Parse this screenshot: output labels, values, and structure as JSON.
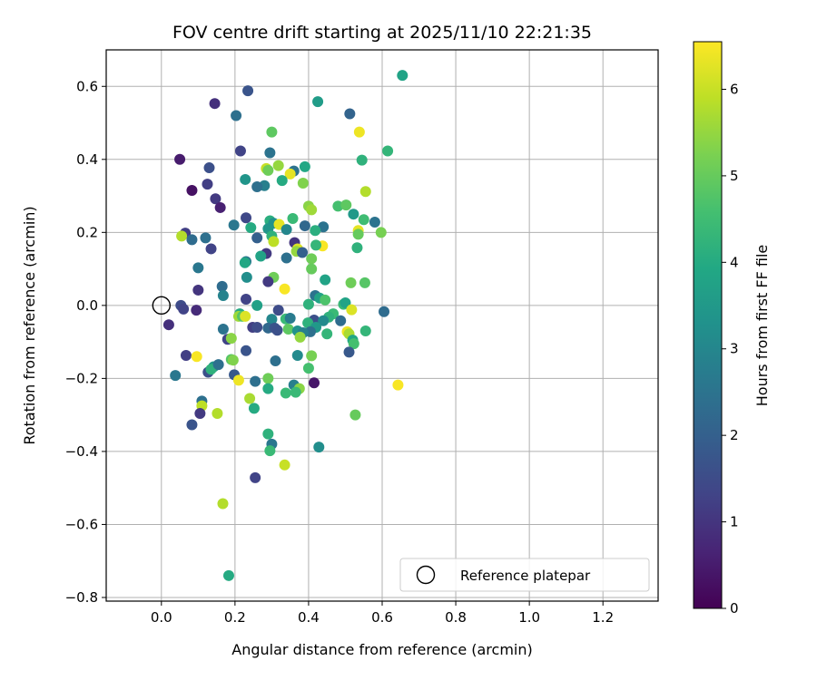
{
  "chart_data": {
    "type": "scatter",
    "title": "FOV centre drift starting at 2025/11/10 22:21:35",
    "xlabel": "Angular distance from reference (arcmin)",
    "ylabel": "Rotation from reference (arcmin)",
    "xlim": [
      -0.15,
      1.35
    ],
    "ylim": [
      -0.81,
      0.7
    ],
    "xticks": [
      0.0,
      0.2,
      0.4,
      0.6,
      0.8,
      1.0,
      1.2
    ],
    "xtick_labels": [
      "0.0",
      "0.2",
      "0.4",
      "0.6",
      "0.8",
      "1.0",
      "1.2"
    ],
    "yticks": [
      0.6,
      0.4,
      0.2,
      0.0,
      -0.2,
      -0.4,
      -0.6,
      -0.8
    ],
    "ytick_labels": [
      "0.6",
      "0.4",
      "0.2",
      "0.0",
      "−0.2",
      "−0.4",
      "−0.6",
      "−0.8"
    ],
    "grid": true,
    "legend": {
      "placement": "lower-right",
      "entries": [
        "Reference platepar"
      ]
    },
    "reference_point": {
      "x": 0.0,
      "y": 0.0
    },
    "colorbar": {
      "label": "Hours from first FF file",
      "range": [
        0,
        6.55
      ],
      "ticks": [
        0,
        1,
        2,
        3,
        4,
        5,
        6
      ],
      "tick_labels": [
        "0",
        "1",
        "2",
        "3",
        "4",
        "5",
        "6"
      ],
      "colormap": "viridis"
    },
    "points": [
      {
        "x": 0.655,
        "y": 0.63,
        "h": 3.8
      },
      {
        "x": 0.425,
        "y": 0.558,
        "h": 3.6
      },
      {
        "x": 0.235,
        "y": 0.588,
        "h": 1.7
      },
      {
        "x": 0.145,
        "y": 0.553,
        "h": 0.9
      },
      {
        "x": 0.203,
        "y": 0.52,
        "h": 2.4
      },
      {
        "x": 0.512,
        "y": 0.525,
        "h": 2.1
      },
      {
        "x": 0.538,
        "y": 0.475,
        "h": 6.4
      },
      {
        "x": 0.3,
        "y": 0.475,
        "h": 4.9
      },
      {
        "x": 0.215,
        "y": 0.423,
        "h": 1.3
      },
      {
        "x": 0.295,
        "y": 0.418,
        "h": 2.5
      },
      {
        "x": 0.615,
        "y": 0.423,
        "h": 4.3
      },
      {
        "x": 0.05,
        "y": 0.4,
        "h": 0.5
      },
      {
        "x": 0.545,
        "y": 0.398,
        "h": 4.2
      },
      {
        "x": 0.13,
        "y": 0.377,
        "h": 1.6
      },
      {
        "x": 0.285,
        "y": 0.375,
        "h": 6.0
      },
      {
        "x": 0.318,
        "y": 0.383,
        "h": 5.5
      },
      {
        "x": 0.39,
        "y": 0.38,
        "h": 3.9
      },
      {
        "x": 0.29,
        "y": 0.37,
        "h": 5.1
      },
      {
        "x": 0.36,
        "y": 0.368,
        "h": 2.5
      },
      {
        "x": 0.35,
        "y": 0.36,
        "h": 6.3
      },
      {
        "x": 0.228,
        "y": 0.345,
        "h": 3.4
      },
      {
        "x": 0.328,
        "y": 0.342,
        "h": 4.0
      },
      {
        "x": 0.385,
        "y": 0.335,
        "h": 5.3
      },
      {
        "x": 0.125,
        "y": 0.332,
        "h": 1.2
      },
      {
        "x": 0.28,
        "y": 0.328,
        "h": 2.8
      },
      {
        "x": 0.26,
        "y": 0.325,
        "h": 2.4
      },
      {
        "x": 0.083,
        "y": 0.315,
        "h": 0.3
      },
      {
        "x": 0.555,
        "y": 0.312,
        "h": 5.8
      },
      {
        "x": 0.147,
        "y": 0.292,
        "h": 1.1
      },
      {
        "x": 0.4,
        "y": 0.272,
        "h": 5.4
      },
      {
        "x": 0.48,
        "y": 0.272,
        "h": 4.6
      },
      {
        "x": 0.502,
        "y": 0.275,
        "h": 4.9
      },
      {
        "x": 0.16,
        "y": 0.268,
        "h": 0.6
      },
      {
        "x": 0.408,
        "y": 0.262,
        "h": 5.6
      },
      {
        "x": 0.522,
        "y": 0.25,
        "h": 3.5
      },
      {
        "x": 0.23,
        "y": 0.24,
        "h": 1.4
      },
      {
        "x": 0.357,
        "y": 0.238,
        "h": 4.4
      },
      {
        "x": 0.295,
        "y": 0.232,
        "h": 4.1
      },
      {
        "x": 0.58,
        "y": 0.228,
        "h": 2.5
      },
      {
        "x": 0.55,
        "y": 0.235,
        "h": 4.5
      },
      {
        "x": 0.197,
        "y": 0.22,
        "h": 2.6
      },
      {
        "x": 0.305,
        "y": 0.225,
        "h": 3.3
      },
      {
        "x": 0.32,
        "y": 0.222,
        "h": 6.3
      },
      {
        "x": 0.39,
        "y": 0.218,
        "h": 2.2
      },
      {
        "x": 0.44,
        "y": 0.215,
        "h": 2.5
      },
      {
        "x": 0.243,
        "y": 0.213,
        "h": 4.0
      },
      {
        "x": 0.29,
        "y": 0.21,
        "h": 3.4
      },
      {
        "x": 0.34,
        "y": 0.208,
        "h": 3.0
      },
      {
        "x": 0.418,
        "y": 0.205,
        "h": 4.1
      },
      {
        "x": 0.597,
        "y": 0.2,
        "h": 5.2
      },
      {
        "x": 0.065,
        "y": 0.198,
        "h": 1.2
      },
      {
        "x": 0.055,
        "y": 0.19,
        "h": 5.8
      },
      {
        "x": 0.3,
        "y": 0.19,
        "h": 4.2
      },
      {
        "x": 0.535,
        "y": 0.205,
        "h": 6.3
      },
      {
        "x": 0.535,
        "y": 0.195,
        "h": 5.0
      },
      {
        "x": 0.12,
        "y": 0.185,
        "h": 2.4
      },
      {
        "x": 0.083,
        "y": 0.18,
        "h": 2.3
      },
      {
        "x": 0.26,
        "y": 0.185,
        "h": 2.0
      },
      {
        "x": 0.305,
        "y": 0.175,
        "h": 5.9
      },
      {
        "x": 0.362,
        "y": 0.172,
        "h": 1.0
      },
      {
        "x": 0.438,
        "y": 0.163,
        "h": 6.5
      },
      {
        "x": 0.42,
        "y": 0.165,
        "h": 4.3
      },
      {
        "x": 0.532,
        "y": 0.158,
        "h": 4.2
      },
      {
        "x": 0.135,
        "y": 0.155,
        "h": 1.3
      },
      {
        "x": 0.37,
        "y": 0.155,
        "h": 6.2
      },
      {
        "x": 0.367,
        "y": 0.148,
        "h": 5.5
      },
      {
        "x": 0.285,
        "y": 0.142,
        "h": 1.1
      },
      {
        "x": 0.383,
        "y": 0.145,
        "h": 2.0
      },
      {
        "x": 0.27,
        "y": 0.135,
        "h": 3.8
      },
      {
        "x": 0.34,
        "y": 0.13,
        "h": 2.4
      },
      {
        "x": 0.408,
        "y": 0.128,
        "h": 5.1
      },
      {
        "x": 0.23,
        "y": 0.12,
        "h": 2.6
      },
      {
        "x": 0.227,
        "y": 0.117,
        "h": 3.9
      },
      {
        "x": 0.1,
        "y": 0.103,
        "h": 2.6
      },
      {
        "x": 0.408,
        "y": 0.1,
        "h": 5.0
      },
      {
        "x": 0.232,
        "y": 0.077,
        "h": 3.2
      },
      {
        "x": 0.305,
        "y": 0.077,
        "h": 5.1
      },
      {
        "x": 0.29,
        "y": 0.065,
        "h": 1.1
      },
      {
        "x": 0.445,
        "y": 0.07,
        "h": 3.8
      },
      {
        "x": 0.515,
        "y": 0.062,
        "h": 5.1
      },
      {
        "x": 0.553,
        "y": 0.062,
        "h": 4.8
      },
      {
        "x": 0.335,
        "y": 0.045,
        "h": 6.5
      },
      {
        "x": 0.165,
        "y": 0.052,
        "h": 2.3
      },
      {
        "x": 0.1,
        "y": 0.042,
        "h": 1.0
      },
      {
        "x": 0.168,
        "y": 0.027,
        "h": 2.9
      },
      {
        "x": 0.418,
        "y": 0.027,
        "h": 2.5
      },
      {
        "x": 0.43,
        "y": 0.02,
        "h": 3.8
      },
      {
        "x": 0.23,
        "y": 0.017,
        "h": 1.3
      },
      {
        "x": 0.445,
        "y": 0.015,
        "h": 4.7
      },
      {
        "x": 0.4,
        "y": 0.003,
        "h": 4.2
      },
      {
        "x": 0.495,
        "y": 0.003,
        "h": 4.4
      },
      {
        "x": 0.5,
        "y": 0.007,
        "h": 3.8
      },
      {
        "x": 0.26,
        "y": 0.0,
        "h": 3.7
      },
      {
        "x": 0.053,
        "y": 0.0,
        "h": 1.5
      },
      {
        "x": 0.06,
        "y": -0.01,
        "h": 1.3
      },
      {
        "x": 0.095,
        "y": -0.013,
        "h": 0.8
      },
      {
        "x": 0.517,
        "y": -0.012,
        "h": 6.2
      },
      {
        "x": 0.605,
        "y": -0.017,
        "h": 2.3
      },
      {
        "x": 0.318,
        "y": -0.013,
        "h": 1.5
      },
      {
        "x": 0.213,
        "y": -0.023,
        "h": 4.0
      },
      {
        "x": 0.467,
        "y": -0.023,
        "h": 4.4
      },
      {
        "x": 0.21,
        "y": -0.03,
        "h": 5.6
      },
      {
        "x": 0.22,
        "y": -0.03,
        "h": 4.8
      },
      {
        "x": 0.228,
        "y": -0.03,
        "h": 6.2
      },
      {
        "x": 0.455,
        "y": -0.032,
        "h": 4.2
      },
      {
        "x": 0.3,
        "y": -0.038,
        "h": 3.0
      },
      {
        "x": 0.338,
        "y": -0.037,
        "h": 4.4
      },
      {
        "x": 0.35,
        "y": -0.035,
        "h": 2.7
      },
      {
        "x": 0.415,
        "y": -0.04,
        "h": 1.6
      },
      {
        "x": 0.44,
        "y": -0.042,
        "h": 3.1
      },
      {
        "x": 0.487,
        "y": -0.042,
        "h": 2.3
      },
      {
        "x": 0.02,
        "y": -0.053,
        "h": 0.9
      },
      {
        "x": 0.398,
        "y": -0.048,
        "h": 4.2
      },
      {
        "x": 0.248,
        "y": -0.06,
        "h": 1.2
      },
      {
        "x": 0.26,
        "y": -0.06,
        "h": 1.5
      },
      {
        "x": 0.29,
        "y": -0.062,
        "h": 2.2
      },
      {
        "x": 0.308,
        "y": -0.062,
        "h": 1.7
      },
      {
        "x": 0.315,
        "y": -0.068,
        "h": 1.6
      },
      {
        "x": 0.42,
        "y": -0.06,
        "h": 3.5
      },
      {
        "x": 0.345,
        "y": -0.065,
        "h": 4.9
      },
      {
        "x": 0.168,
        "y": -0.065,
        "h": 2.5
      },
      {
        "x": 0.37,
        "y": -0.07,
        "h": 3.3
      },
      {
        "x": 0.405,
        "y": -0.072,
        "h": 2.4
      },
      {
        "x": 0.385,
        "y": -0.075,
        "h": 2.8
      },
      {
        "x": 0.555,
        "y": -0.07,
        "h": 4.3
      },
      {
        "x": 0.505,
        "y": -0.072,
        "h": 6.4
      },
      {
        "x": 0.45,
        "y": -0.078,
        "h": 4.3
      },
      {
        "x": 0.51,
        "y": -0.078,
        "h": 5.7
      },
      {
        "x": 0.377,
        "y": -0.087,
        "h": 5.5
      },
      {
        "x": 0.18,
        "y": -0.093,
        "h": 1.3
      },
      {
        "x": 0.19,
        "y": -0.09,
        "h": 5.4
      },
      {
        "x": 0.52,
        "y": -0.095,
        "h": 3.9
      },
      {
        "x": 0.523,
        "y": -0.105,
        "h": 4.6
      },
      {
        "x": 0.23,
        "y": -0.124,
        "h": 1.7
      },
      {
        "x": 0.51,
        "y": -0.128,
        "h": 1.8
      },
      {
        "x": 0.067,
        "y": -0.137,
        "h": 1.2
      },
      {
        "x": 0.096,
        "y": -0.14,
        "h": 6.5
      },
      {
        "x": 0.37,
        "y": -0.137,
        "h": 3.1
      },
      {
        "x": 0.408,
        "y": -0.138,
        "h": 5.2
      },
      {
        "x": 0.19,
        "y": -0.148,
        "h": 4.8
      },
      {
        "x": 0.195,
        "y": -0.15,
        "h": 5.3
      },
      {
        "x": 0.31,
        "y": -0.152,
        "h": 2.4
      },
      {
        "x": 0.142,
        "y": -0.168,
        "h": 3.4
      },
      {
        "x": 0.4,
        "y": -0.172,
        "h": 4.6
      },
      {
        "x": 0.127,
        "y": -0.183,
        "h": 1.6
      },
      {
        "x": 0.135,
        "y": -0.175,
        "h": 4.2
      },
      {
        "x": 0.155,
        "y": -0.162,
        "h": 2.4
      },
      {
        "x": 0.038,
        "y": -0.192,
        "h": 2.6
      },
      {
        "x": 0.198,
        "y": -0.19,
        "h": 1.8
      },
      {
        "x": 0.29,
        "y": -0.2,
        "h": 5.1
      },
      {
        "x": 0.21,
        "y": -0.205,
        "h": 6.4
      },
      {
        "x": 0.255,
        "y": -0.208,
        "h": 2.4
      },
      {
        "x": 0.415,
        "y": -0.212,
        "h": 0.4
      },
      {
        "x": 0.36,
        "y": -0.218,
        "h": 2.8
      },
      {
        "x": 0.643,
        "y": -0.218,
        "h": 6.5
      },
      {
        "x": 0.29,
        "y": -0.228,
        "h": 4.0
      },
      {
        "x": 0.375,
        "y": -0.228,
        "h": 5.4
      },
      {
        "x": 0.338,
        "y": -0.24,
        "h": 4.4
      },
      {
        "x": 0.365,
        "y": -0.238,
        "h": 4.4
      },
      {
        "x": 0.24,
        "y": -0.255,
        "h": 5.7
      },
      {
        "x": 0.11,
        "y": -0.262,
        "h": 2.4
      },
      {
        "x": 0.11,
        "y": -0.275,
        "h": 5.9
      },
      {
        "x": 0.252,
        "y": -0.282,
        "h": 4.0
      },
      {
        "x": 0.105,
        "y": -0.296,
        "h": 1.1
      },
      {
        "x": 0.152,
        "y": -0.296,
        "h": 5.8
      },
      {
        "x": 0.527,
        "y": -0.3,
        "h": 5.0
      },
      {
        "x": 0.083,
        "y": -0.327,
        "h": 1.7
      },
      {
        "x": 0.29,
        "y": -0.352,
        "h": 4.2
      },
      {
        "x": 0.3,
        "y": -0.38,
        "h": 2.6
      },
      {
        "x": 0.428,
        "y": -0.388,
        "h": 3.2
      },
      {
        "x": 0.295,
        "y": -0.398,
        "h": 4.4
      },
      {
        "x": 0.335,
        "y": -0.437,
        "h": 6.0
      },
      {
        "x": 0.255,
        "y": -0.472,
        "h": 1.3
      },
      {
        "x": 0.167,
        "y": -0.543,
        "h": 5.8
      },
      {
        "x": 0.183,
        "y": -0.74,
        "h": 4.0
      }
    ]
  }
}
